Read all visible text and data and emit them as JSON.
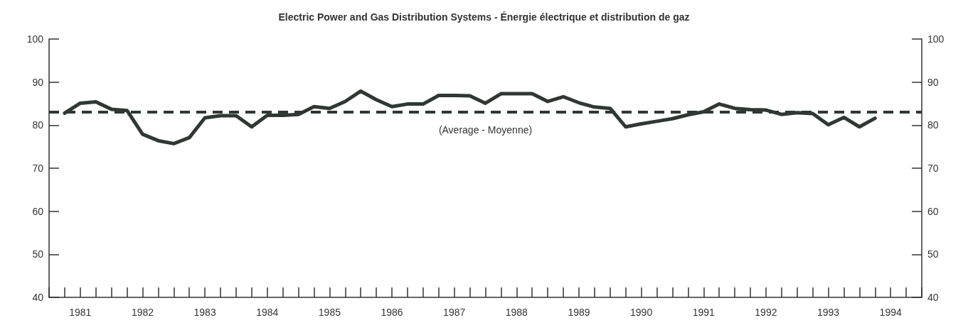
{
  "chart_data": {
    "type": "line",
    "title": "Electric Power and Gas Distribution Systems - Énergie électrique et distribution de gaz",
    "x": [
      1981.25,
      1981.5,
      1981.75,
      1982,
      1982.25,
      1982.5,
      1982.75,
      1983,
      1983.25,
      1983.5,
      1983.75,
      1984,
      1984.25,
      1984.5,
      1984.75,
      1985,
      1985.25,
      1985.5,
      1985.75,
      1986,
      1986.25,
      1986.5,
      1986.75,
      1987,
      1987.25,
      1987.5,
      1987.75,
      1988,
      1988.25,
      1988.5,
      1988.75,
      1989,
      1989.25,
      1989.5,
      1989.75,
      1990,
      1990.25,
      1990.5,
      1990.75,
      1991,
      1991.25,
      1991.5,
      1991.75,
      1992,
      1992.25,
      1992.5,
      1992.75,
      1993,
      1993.25,
      1993.5,
      1993.75,
      1994,
      1994.25
    ],
    "series": [
      {
        "color": "#2f3833",
        "values": [
          82.8,
          85.1,
          85.4,
          83.7,
          83.4,
          77.9,
          76.4,
          75.7,
          77.1,
          81.7,
          82.2,
          82.2,
          79.6,
          82.3,
          82.3,
          82.5,
          84.3,
          83.9,
          85.5,
          87.9,
          85.9,
          84.3,
          84.9,
          84.9,
          86.9,
          86.9,
          86.8,
          85.1,
          87.3,
          87.3,
          87.3,
          85.5,
          86.6,
          85.2,
          84.2,
          83.9,
          79.6,
          80.3,
          80.9,
          81.5,
          82.4,
          83.1,
          84.9,
          83.9,
          83.6,
          83.5,
          82.5,
          82.9,
          82.7,
          80.1,
          81.8,
          79.6,
          81.6
        ]
      }
    ],
    "xlim": [
      1981,
      1995
    ],
    "xticks": [
      {
        "value": 1981,
        "label": null
      },
      {
        "value": 1981.25,
        "label": null
      },
      {
        "value": 1981.5,
        "label": "1981"
      },
      {
        "value": 1981.75,
        "label": null
      },
      {
        "value": 1982,
        "label": null
      },
      {
        "value": 1982.25,
        "label": null
      },
      {
        "value": 1982.5,
        "label": "1982"
      },
      {
        "value": 1982.75,
        "label": null
      },
      {
        "value": 1983,
        "label": null
      },
      {
        "value": 1983.25,
        "label": null
      },
      {
        "value": 1983.5,
        "label": "1983"
      },
      {
        "value": 1983.75,
        "label": null
      },
      {
        "value": 1984,
        "label": null
      },
      {
        "value": 1984.25,
        "label": null
      },
      {
        "value": 1984.5,
        "label": "1984"
      },
      {
        "value": 1984.75,
        "label": null
      },
      {
        "value": 1985,
        "label": null
      },
      {
        "value": 1985.25,
        "label": null
      },
      {
        "value": 1985.5,
        "label": "1985"
      },
      {
        "value": 1985.75,
        "label": null
      },
      {
        "value": 1986,
        "label": null
      },
      {
        "value": 1986.25,
        "label": null
      },
      {
        "value": 1986.5,
        "label": "1986"
      },
      {
        "value": 1986.75,
        "label": null
      },
      {
        "value": 1987,
        "label": null
      },
      {
        "value": 1987.25,
        "label": null
      },
      {
        "value": 1987.5,
        "label": "1987"
      },
      {
        "value": 1987.75,
        "label": null
      },
      {
        "value": 1988,
        "label": null
      },
      {
        "value": 1988.25,
        "label": null
      },
      {
        "value": 1988.5,
        "label": "1988"
      },
      {
        "value": 1988.75,
        "label": null
      },
      {
        "value": 1989,
        "label": null
      },
      {
        "value": 1989.25,
        "label": null
      },
      {
        "value": 1989.5,
        "label": "1989"
      },
      {
        "value": 1989.75,
        "label": null
      },
      {
        "value": 1990,
        "label": null
      },
      {
        "value": 1990.25,
        "label": null
      },
      {
        "value": 1990.5,
        "label": "1990"
      },
      {
        "value": 1990.75,
        "label": null
      },
      {
        "value": 1991,
        "label": null
      },
      {
        "value": 1991.25,
        "label": null
      },
      {
        "value": 1991.5,
        "label": "1991"
      },
      {
        "value": 1991.75,
        "label": null
      },
      {
        "value": 1992,
        "label": null
      },
      {
        "value": 1992.25,
        "label": null
      },
      {
        "value": 1992.5,
        "label": "1992"
      },
      {
        "value": 1992.75,
        "label": null
      },
      {
        "value": 1993,
        "label": null
      },
      {
        "value": 1993.25,
        "label": null
      },
      {
        "value": 1993.5,
        "label": "1993"
      },
      {
        "value": 1993.75,
        "label": null
      },
      {
        "value": 1994,
        "label": null
      },
      {
        "value": 1994.25,
        "label": null
      },
      {
        "value": 1994.5,
        "label": "1994"
      },
      {
        "value": 1994.75,
        "label": null
      },
      {
        "value": 1995,
        "label": null
      }
    ],
    "ylim": [
      40,
      100
    ],
    "yticks": [
      40,
      50,
      60,
      70,
      80,
      90,
      100
    ],
    "y2lim": [
      40,
      100
    ],
    "y2ticks": [
      40,
      50,
      60,
      70,
      80,
      90,
      100
    ],
    "ref_lines": [
      {
        "axis": "y",
        "value": 83,
        "label": "(Average - Moyenne)",
        "color": "#2f3833",
        "line_style": "dashed"
      }
    ],
    "grid": false,
    "marker": "none",
    "line_style": "solid"
  }
}
